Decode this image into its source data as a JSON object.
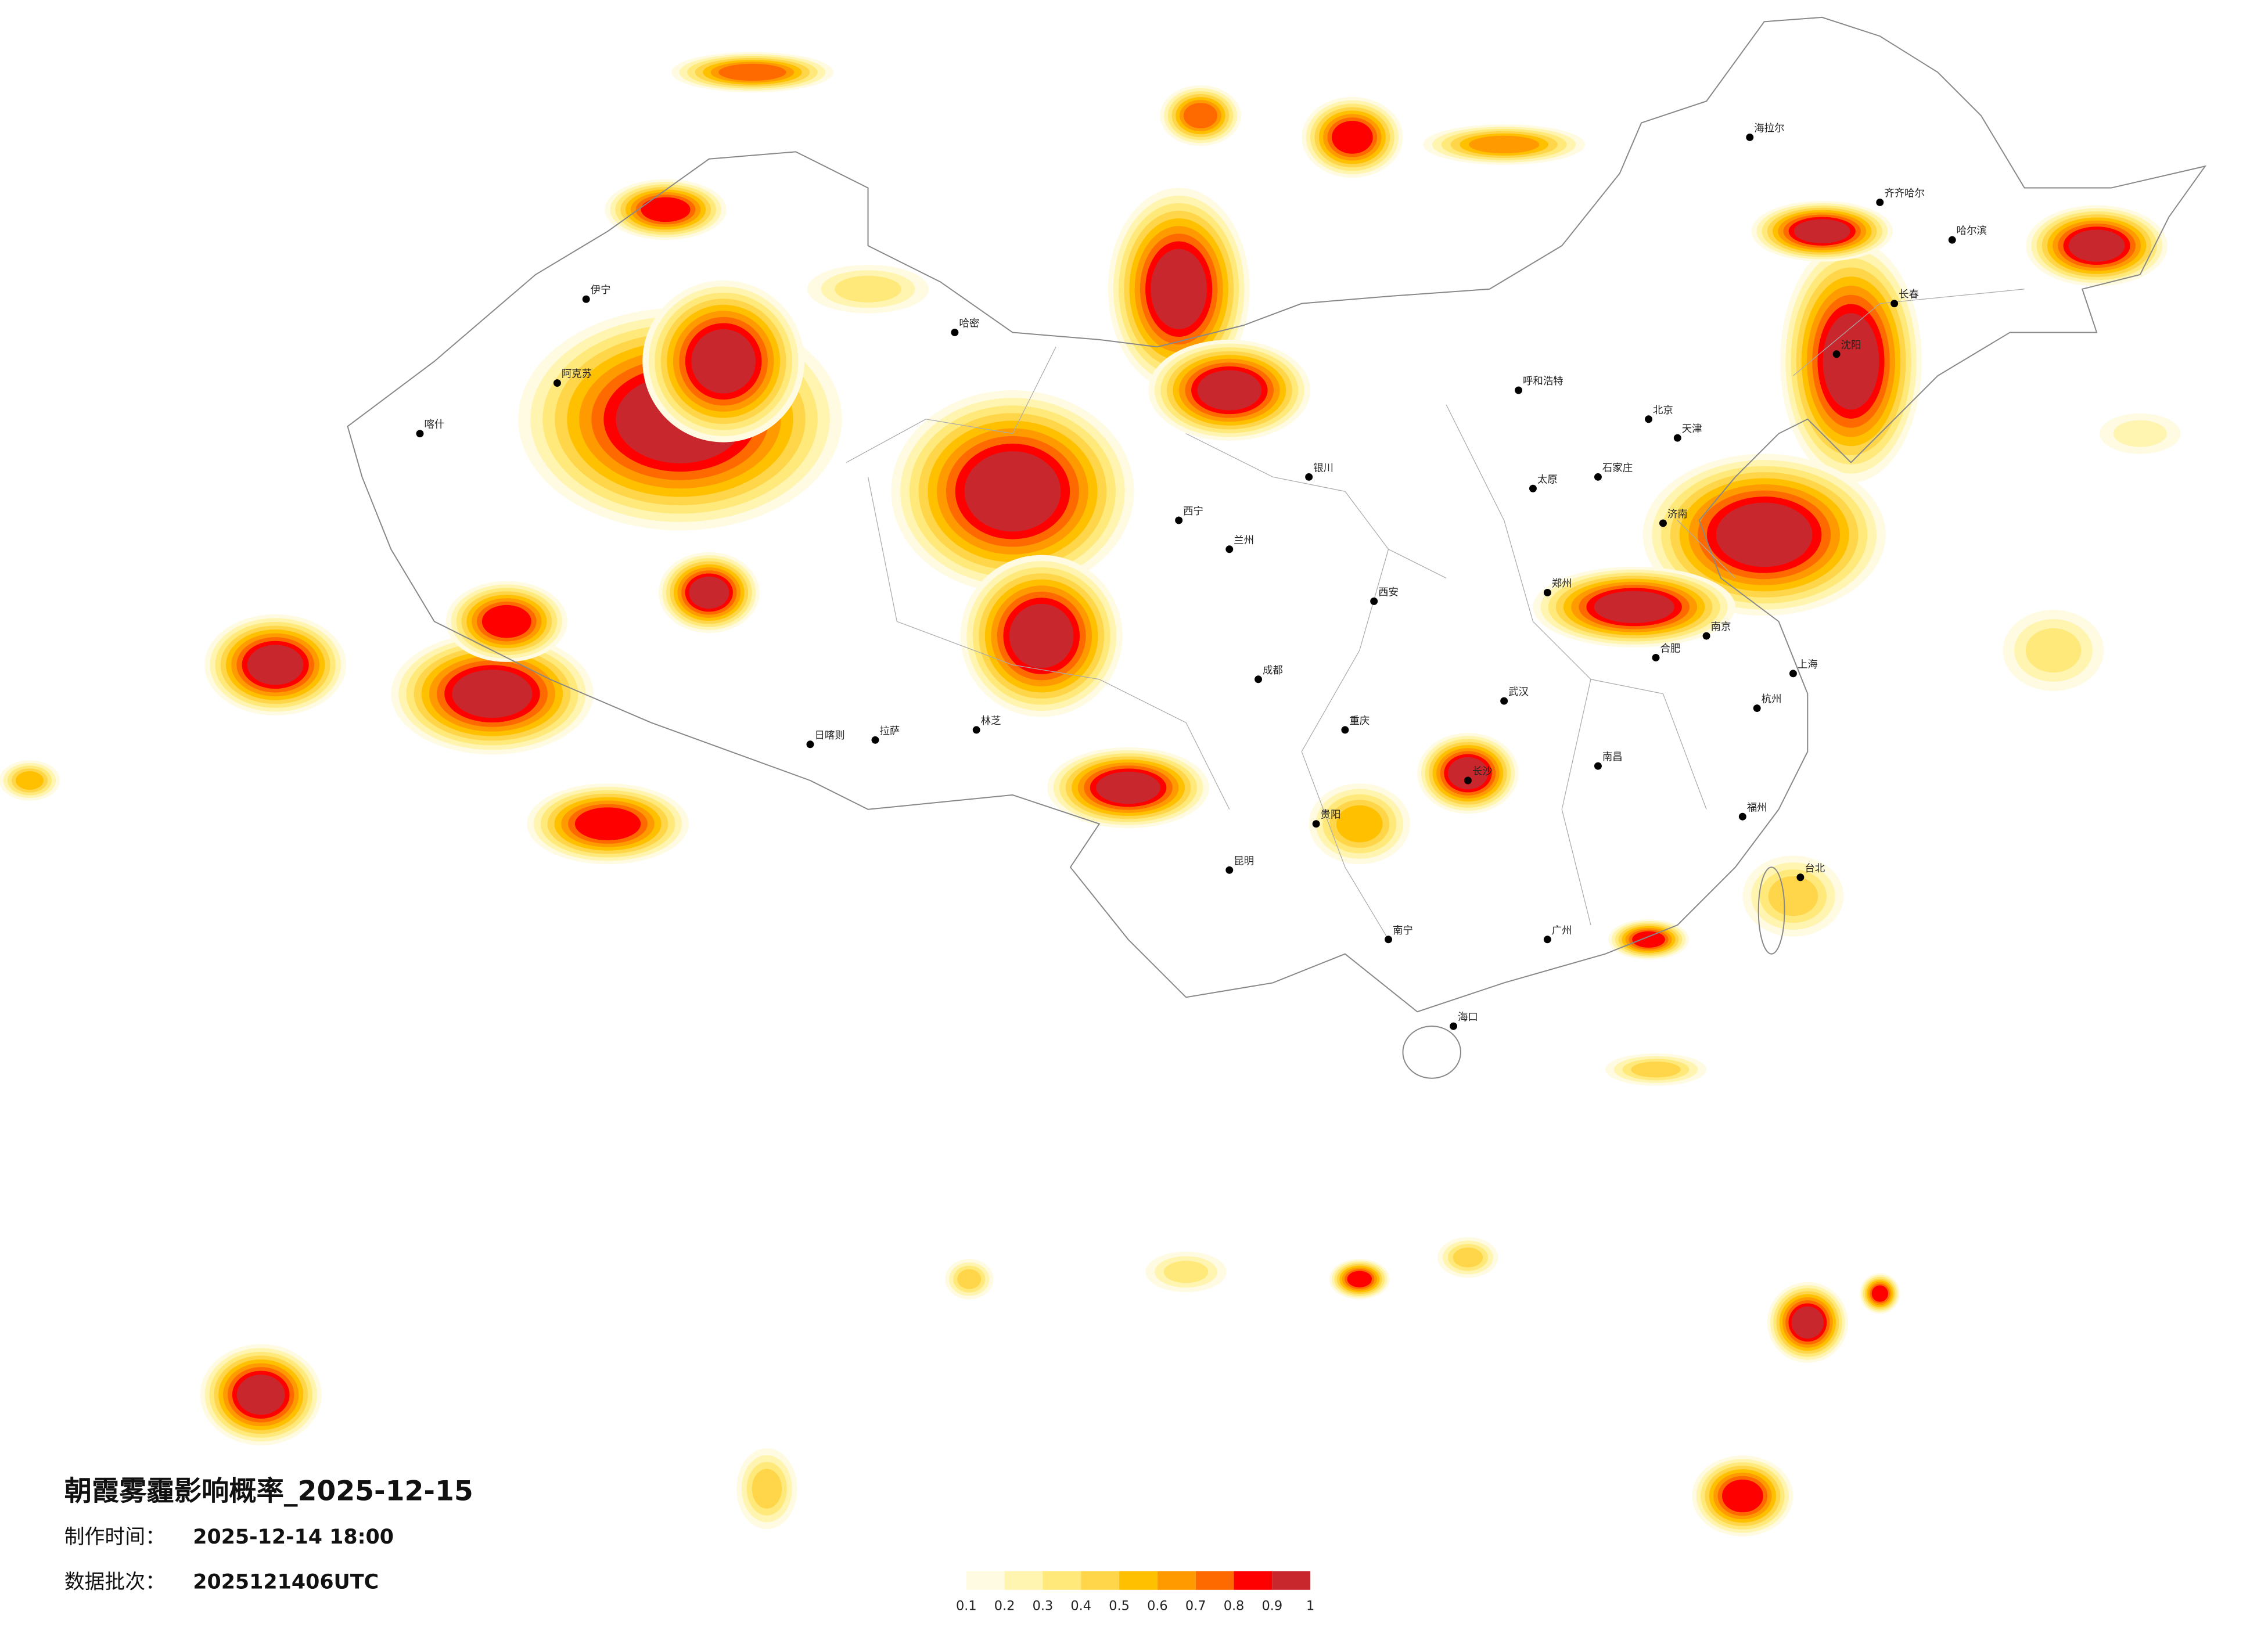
{
  "title": "朝霞雾霾影响概率_2025-12-15",
  "production": {
    "label": "制作时间：",
    "value": "2025-12-14 18:00"
  },
  "batch": {
    "label": "数据批次：",
    "value": "2025121406UTC"
  },
  "legend": {
    "ticks": [
      0.1,
      0.2,
      0.3,
      0.4,
      0.5,
      0.6,
      0.7,
      0.8,
      0.9,
      1
    ],
    "colors": [
      "#fffbe3",
      "#fff4b0",
      "#ffe97a",
      "#ffd54a",
      "#ffc000",
      "#ff9a00",
      "#ff6a00",
      "#ff0000",
      "#c8282d"
    ]
  },
  "cities": [
    "北京",
    "天津",
    "石家庄",
    "太原",
    "呼和浩特",
    "济南",
    "郑州",
    "西安",
    "兰州",
    "西宁",
    "银川",
    "拉萨",
    "成都",
    "重庆",
    "贵阳",
    "昆明",
    "南宁",
    "广州",
    "长沙",
    "武汉",
    "南京",
    "上海",
    "杭州",
    "福州",
    "南昌",
    "合肥",
    "海口",
    "台北",
    "沈阳",
    "长春",
    "哈尔滨",
    "齐齐哈尔",
    "海拉尔",
    "伊宁",
    "阿克苏",
    "喀什",
    "哈密",
    "日喀则",
    "林芝"
  ]
}
